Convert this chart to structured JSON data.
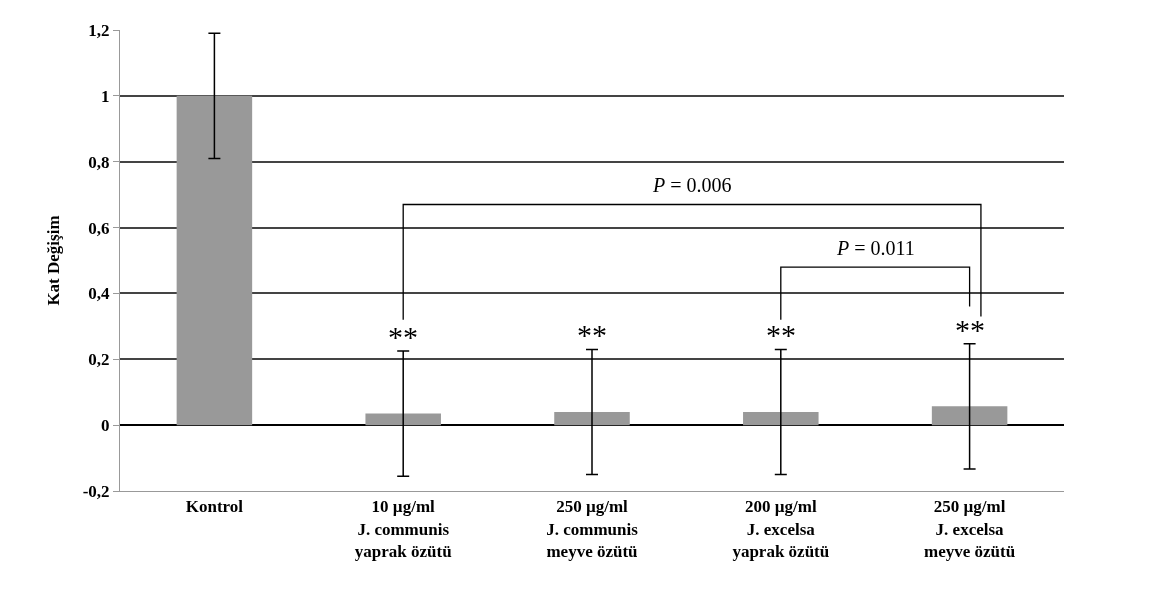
{
  "chart_data": {
    "type": "bar",
    "ylabel": "Kat Değişim",
    "categories": [
      "Kontrol",
      "10 µg/ml\nJ. communis\nyaprak özütü",
      "250 µg/ml\nJ. communis\nmeyve özütü",
      "200 µg/ml\nJ. excelsa\nyaprak özütü",
      "250 µg/ml\nJ. excelsa\nmeyve özütü"
    ],
    "values": [
      1.0,
      0.035,
      0.04,
      0.04,
      0.057
    ],
    "errors": [
      0.19,
      0.19,
      0.19,
      0.19,
      0.19
    ],
    "color": "#999999",
    "ylim": [
      -0.2,
      1.2
    ],
    "yticks": [
      {
        "value": -0.2,
        "label": "-0,2"
      },
      0,
      {
        "value": 0.2,
        "label": "0,2"
      },
      {
        "value": 0.4,
        "label": "0,4"
      },
      {
        "value": 0.6,
        "label": "0,6"
      },
      {
        "value": 0.8,
        "label": "0,8"
      },
      1,
      {
        "value": 1.2,
        "label": "1,2"
      }
    ],
    "grid": "y",
    "annotations": [
      "**",
      "**",
      "**",
      "**",
      "P = 0.006",
      "P = 0.011"
    ]
  }
}
